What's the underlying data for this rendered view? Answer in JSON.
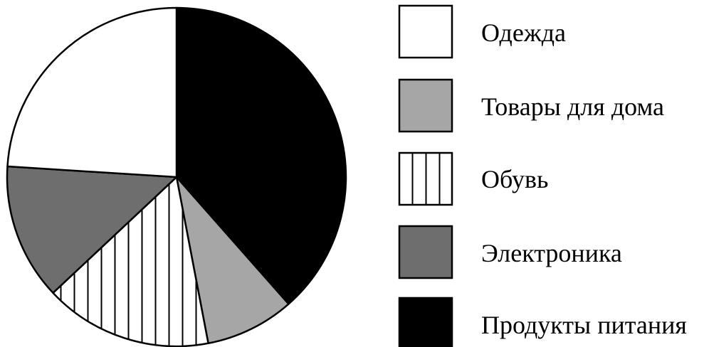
{
  "chart_data": {
    "type": "pie",
    "title": "",
    "categories": [
      "Одежда",
      "Товары для дома",
      "Обувь",
      "Электроника",
      "Продукты питания"
    ],
    "values": [
      24,
      8.5,
      16,
      13,
      38.5
    ],
    "unit": "",
    "slice_order_clockwise_from_top": [
      "Продукты питания",
      "Товары для дома",
      "Обувь",
      "Электроника",
      "Одежда"
    ],
    "legend_position": "right",
    "fills": {
      "Одежда": "#ffffff",
      "Товары для дома": "#a6a6a6",
      "Обувь": "vertical-stripes",
      "Электроника": "#6e6e6e",
      "Продукты питания": "#000000"
    }
  },
  "legend": [
    {
      "label": "Одежда"
    },
    {
      "label": "Товары для дома"
    },
    {
      "label": "Обувь"
    },
    {
      "label": "Электроника"
    },
    {
      "label": "Продукты питания"
    }
  ]
}
